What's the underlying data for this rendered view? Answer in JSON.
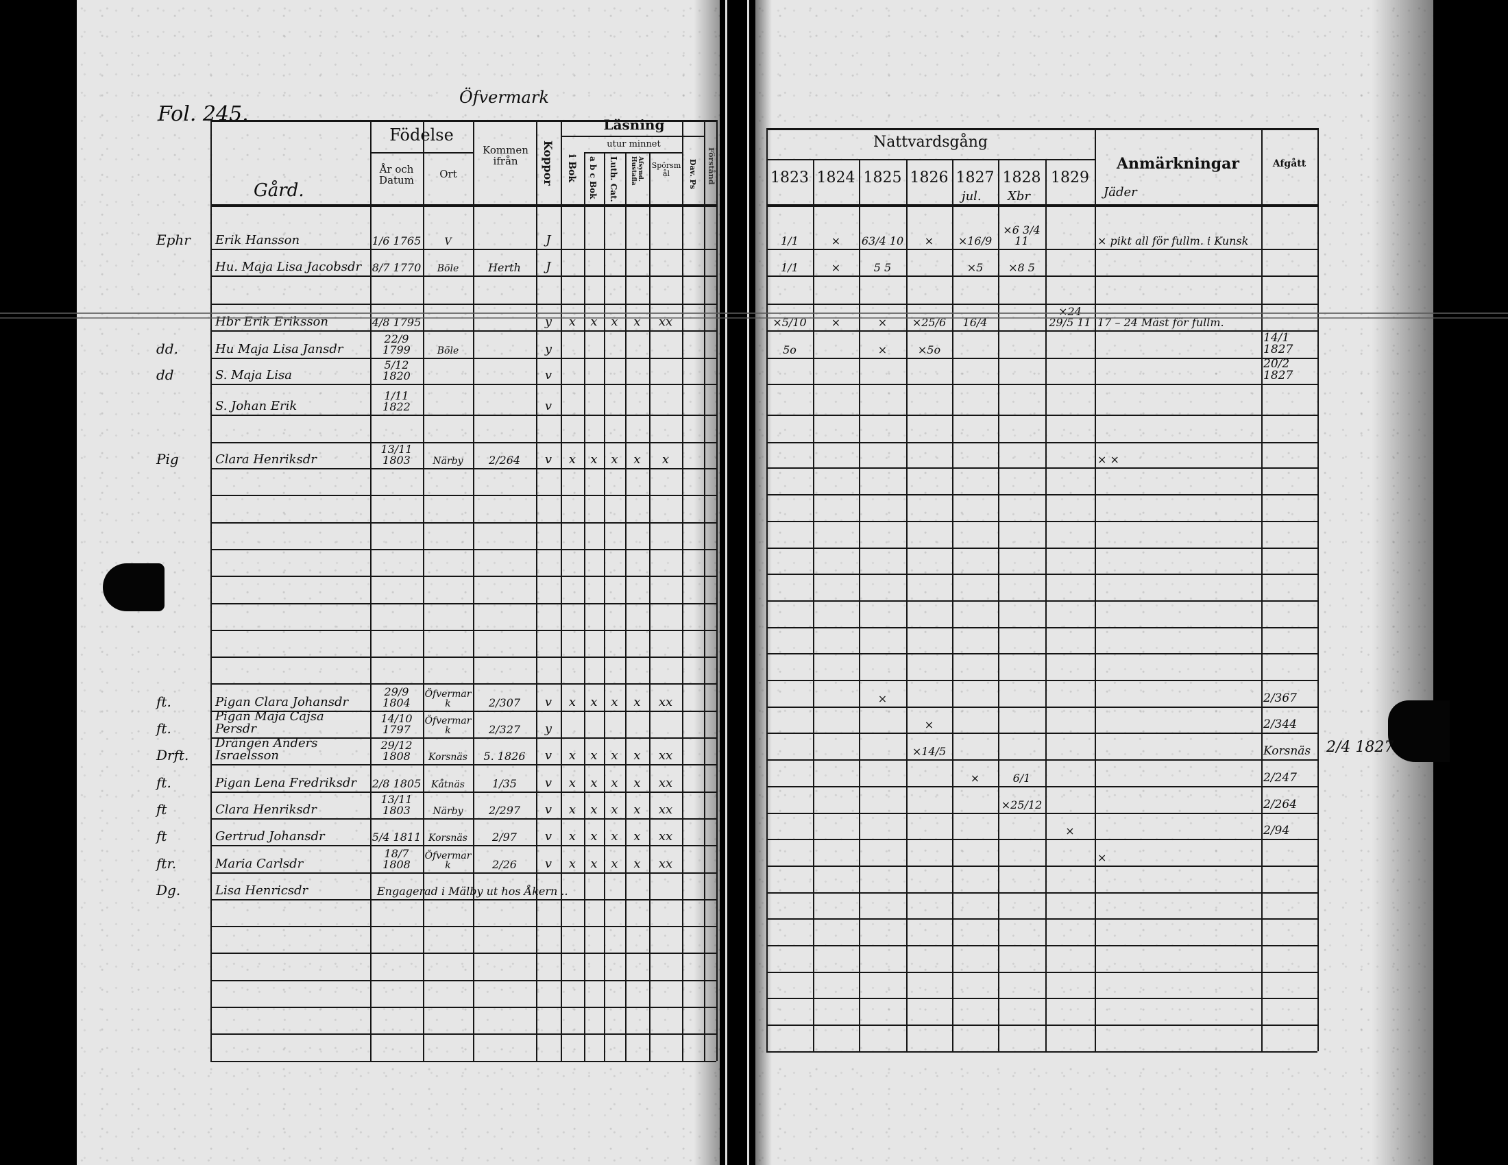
{
  "left_page": {
    "folio": "Fol. 245.",
    "village": "Öfvermark",
    "headers": {
      "name_col": "Gård.",
      "birth": "Födelse",
      "birth_date": "År och Datum",
      "birth_place": "Ort",
      "came_from": "Kommen ifrån",
      "smallpox": "Koppor",
      "reading": "Läsning",
      "in_book": "i Bok",
      "by_heart": "utur minnet",
      "abc_book": "a b c Bok",
      "luth_cat": "Luth. Cat.",
      "hustafla": "Afsynd. Hustafla",
      "questions": "Spörsmål",
      "dav_ps": "Dav. Ps",
      "understanding": "Förstånd"
    }
  },
  "right_page": {
    "headers": {
      "communion": "Nattvardsgång",
      "years": [
        "1823",
        "1824",
        "1825",
        "1826",
        "1827",
        "1828",
        "1829"
      ],
      "year_notes": [
        "",
        "",
        "",
        "",
        "jul.",
        "Xbr",
        ""
      ],
      "remarks": "Anmärkningar",
      "remarks_note": "Jäder",
      "departed": "Afgått"
    },
    "outside_note": "2/4 1827"
  },
  "rows": [
    {
      "margin": "Ephr",
      "name": "Erik Hansson",
      "date": "1/6 1765",
      "place": "V",
      "from": "",
      "koppor": "J",
      "reading": [],
      "years": [
        "1/1",
        "×",
        "63/4 10",
        "×",
        "×16/9",
        "×6 3/4 11",
        ""
      ],
      "remark": "× pikt all för fullm. i Kunsk",
      "departed": ""
    },
    {
      "margin": "",
      "name": "Hu. Maja Lisa Jacobsdr",
      "date": "8/7 1770",
      "place": "Böle",
      "from": "Herth",
      "koppor": "J",
      "reading": [],
      "years": [
        "1/1",
        "×",
        "5 5",
        "",
        "×5",
        "×8 5",
        ""
      ],
      "remark": "",
      "departed": ""
    },
    {},
    {
      "margin": "",
      "name": "Hbr Erik Eriksson",
      "date": "4/8 1795",
      "place": "",
      "from": "",
      "koppor": "y",
      "reading": [
        "x",
        "x",
        "x",
        "x",
        "xx"
      ],
      "years": [
        "×5/10",
        "×",
        "×",
        "×25/6",
        "16/4",
        "",
        "×24 29/5 11"
      ],
      "remark": "17 – 24 Mäst för fullm.",
      "departed": ""
    },
    {
      "margin": "dd.",
      "name": "Hu Maja Lisa Jansdr",
      "date": "22/9 1799",
      "place": "Böle",
      "from": "",
      "koppor": "y",
      "reading": [],
      "years": [
        "5o",
        "",
        "×",
        "×5o",
        "",
        "",
        ""
      ],
      "remark": "",
      "departed": "14/1 1827"
    },
    {
      "margin": "dd",
      "name": "S. Maja Lisa",
      "date": "5/12 1820",
      "place": "",
      "from": "",
      "koppor": "v",
      "reading": [],
      "years": [],
      "remark": "",
      "departed": "20/2 1827"
    },
    {
      "margin": "",
      "name": "S. Johan Erik",
      "date": "1/11 1822",
      "place": "",
      "from": "",
      "koppor": "v",
      "reading": [],
      "years": [],
      "remark": "",
      "departed": ""
    },
    {},
    {
      "margin": "Pig",
      "name": "Clara Henriksdr",
      "date": "13/11 1803",
      "place": "Närby",
      "from": "2/264",
      "koppor": "v",
      "reading": [
        "x",
        "x",
        "x",
        "x",
        "x"
      ],
      "years": [],
      "remark": "×   ×",
      "departed": ""
    },
    {},
    {},
    {},
    {},
    {},
    {},
    {},
    {},
    {
      "margin": "ft.",
      "name": "Pigan Clara Johansdr",
      "date": "29/9 1804",
      "place": "Öfvermark",
      "from": "2/307",
      "koppor": "v",
      "reading": [
        "x",
        "x",
        "x",
        "x",
        "xx"
      ],
      "years": [
        "",
        "",
        "×",
        "",
        "",
        "",
        ""
      ],
      "remark": "",
      "departed": "2/367"
    },
    {
      "margin": "ft.",
      "name": "Pigan Maja Cajsa Persdr",
      "date": "14/10 1797",
      "place": "Öfvermark",
      "from": "2/327",
      "koppor": "y",
      "reading": [],
      "years": [
        "",
        "",
        "",
        "×",
        "",
        "",
        ""
      ],
      "remark": "",
      "departed": "2/344"
    },
    {
      "margin": "Drft.",
      "name": "Drängen Anders Israelsson",
      "date": "29/12 1808",
      "place": "Korsnäs",
      "from": "5. 1826",
      "koppor": "v",
      "reading": [
        "x",
        "x",
        "x",
        "x",
        "xx"
      ],
      "years": [
        "",
        "",
        "",
        "×14/5",
        "",
        "",
        ""
      ],
      "remark": "",
      "departed": "Korsnäs"
    },
    {
      "margin": "ft.",
      "name": "Pigan Lena Fredriksdr",
      "date": "2/8 1805",
      "place": "Kåtnäs",
      "from": "1/35",
      "koppor": "v",
      "reading": [
        "x",
        "x",
        "x",
        "x",
        "xx"
      ],
      "years": [
        "",
        "",
        "",
        "",
        "×",
        "6/1",
        ""
      ],
      "remark": "",
      "departed": "2/247"
    },
    {
      "margin": "ft",
      "name": "Clara Henriksdr",
      "date": "13/11 1803",
      "place": "Närby",
      "from": "2/297",
      "koppor": "v",
      "reading": [
        "x",
        "x",
        "x",
        "x",
        "xx"
      ],
      "years": [
        "",
        "",
        "",
        "",
        "",
        "×25/12",
        ""
      ],
      "remark": "",
      "departed": "2/264"
    },
    {
      "margin": "ft",
      "name": "Gertrud Johansdr",
      "date": "5/4 1811",
      "place": "Korsnäs",
      "from": "2/97",
      "koppor": "v",
      "reading": [
        "x",
        "x",
        "x",
        "x",
        "xx"
      ],
      "years": [
        "",
        "",
        "",
        "",
        "",
        "",
        "×"
      ],
      "remark": "",
      "departed": "2/94"
    },
    {
      "margin": "ftr.",
      "name": "Maria Carlsdr",
      "date": "18/7 1808",
      "place": "Öfvermark",
      "from": "2/26",
      "koppor": "v",
      "reading": [
        "x",
        "x",
        "x",
        "x",
        "xx"
      ],
      "years": [],
      "remark": "×",
      "departed": ""
    },
    {
      "margin": "Dg.",
      "name": "Lisa Henricsdr",
      "date": "",
      "place": "",
      "from": "",
      "koppor": "",
      "reading": [],
      "years": [],
      "remark": "",
      "departed": "",
      "note": "Engagerad i Mälby ut hos Åkern .."
    },
    {},
    {},
    {},
    {},
    {},
    {}
  ]
}
